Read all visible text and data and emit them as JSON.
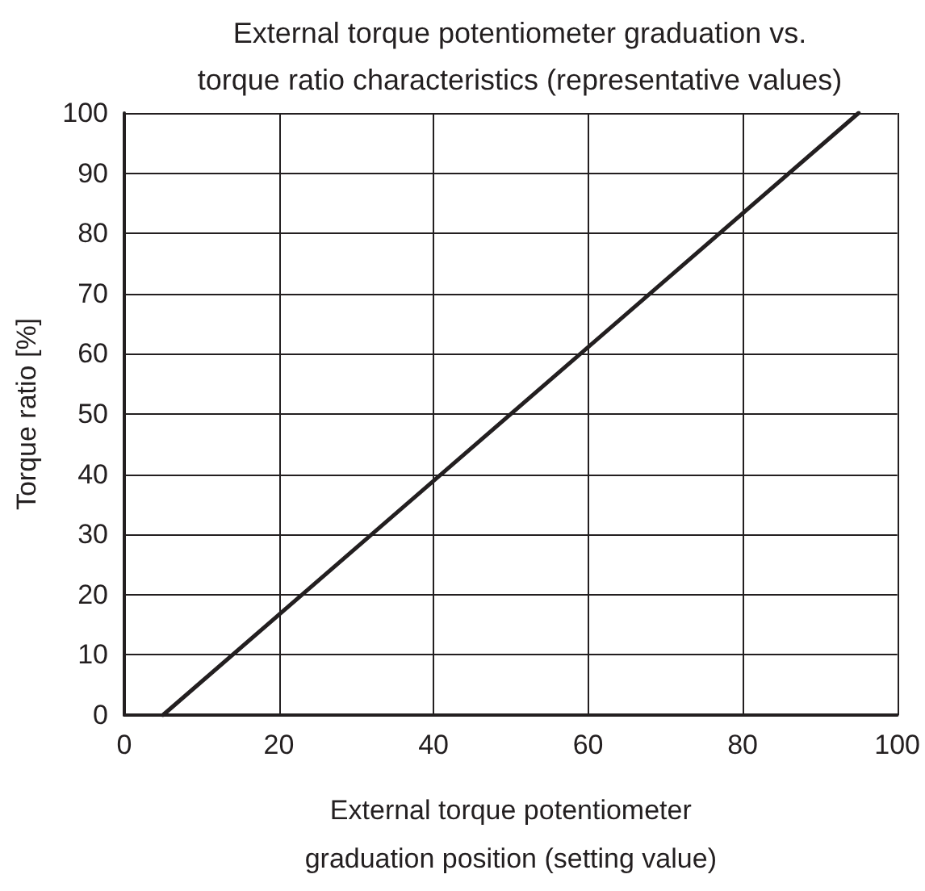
{
  "chart_data": {
    "type": "line",
    "title": "External torque potentiometer graduation vs. torque ratio characteristics (representative values)",
    "xlabel": "External torque potentiometer graduation position (setting value)",
    "ylabel": "Torque ratio [%]",
    "series": [
      {
        "color": "#231f20",
        "x": [
          5,
          95
        ],
        "values": [
          0,
          100
        ]
      }
    ],
    "xlim": [
      0,
      100
    ],
    "xticks": [
      0,
      20,
      40,
      60,
      80,
      100
    ],
    "ylim": [
      0,
      100
    ],
    "yticks": [
      0,
      10,
      20,
      30,
      40,
      50,
      60,
      70,
      80,
      90,
      100
    ],
    "grid": true,
    "marker": "none",
    "line_style": "solid"
  }
}
